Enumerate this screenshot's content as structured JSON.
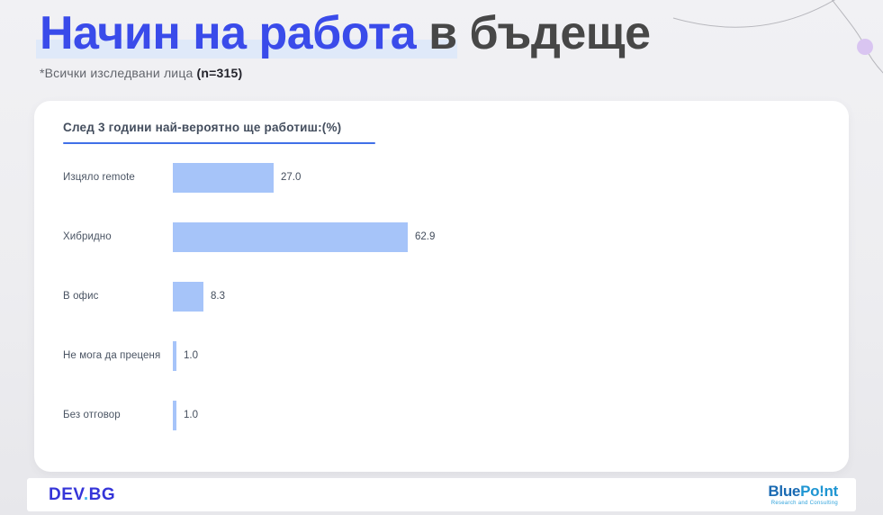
{
  "header": {
    "title_accent": "Начин на работа",
    "title_rest": "в бъдеще",
    "subtitle": "*Всички изследвани лица",
    "sample_size": "(n=315)"
  },
  "chart_data": {
    "type": "bar",
    "orientation": "horizontal",
    "title": "След 3 години най-вероятно ще работиш:(%)",
    "categories": [
      "Изцяло remote",
      "Хибридно",
      "В офис",
      "Не мога да преценя",
      "Без отговор"
    ],
    "values": [
      27.0,
      62.9,
      8.3,
      1.0,
      1.0
    ],
    "value_labels": [
      "27.0",
      "62.9",
      "8.3",
      "1.0",
      "1.0"
    ],
    "xlim": [
      0,
      100
    ],
    "bar_color": "#a6c4f9",
    "grid": false,
    "legend": false
  },
  "footer": {
    "devbg": {
      "part1": "DEV",
      "dot": ".",
      "part2": "BG"
    },
    "bluepoint": {
      "part1": "Blue",
      "part2": "Po!nt",
      "tagline": "Research and Consulting"
    }
  },
  "colors": {
    "accent_blue": "#3a4bea",
    "title_dark": "#474747",
    "highlight": "#dfe9f9",
    "underline": "#4170e8",
    "bar": "#a6c4f9",
    "devbg_blue": "#3535d8",
    "devbg_dot": "#41b6f0",
    "bluepoint_dark": "#1a6ab2",
    "bluepoint_light": "#1e95d2",
    "lavender_dot": "#d9c5f1",
    "arc_gray": "#a9a9af"
  }
}
